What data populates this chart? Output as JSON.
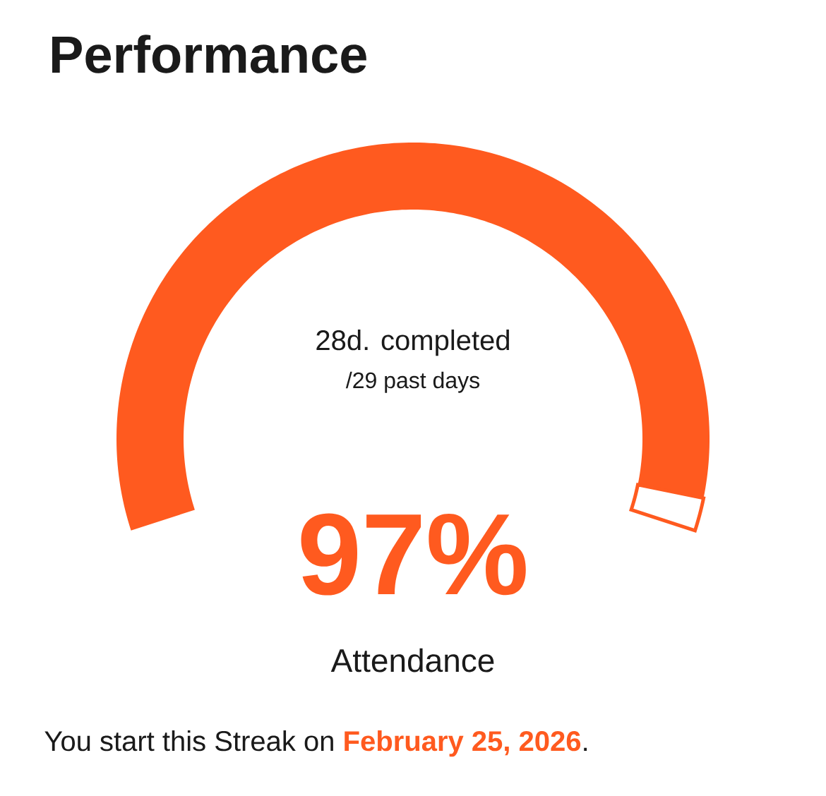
{
  "chart_data": {
    "type": "donut",
    "title": "Performance",
    "categories": [
      null,
      null
    ],
    "values": [
      97,
      3
    ],
    "colors": [
      "#ff5a1f",
      "#ffffff"
    ],
    "annotations": [
      "28d. completed",
      "/29 past days",
      "97%",
      "Attendance",
      "You start this Streak on ",
      "February 25, 2026",
      "."
    ]
  }
}
